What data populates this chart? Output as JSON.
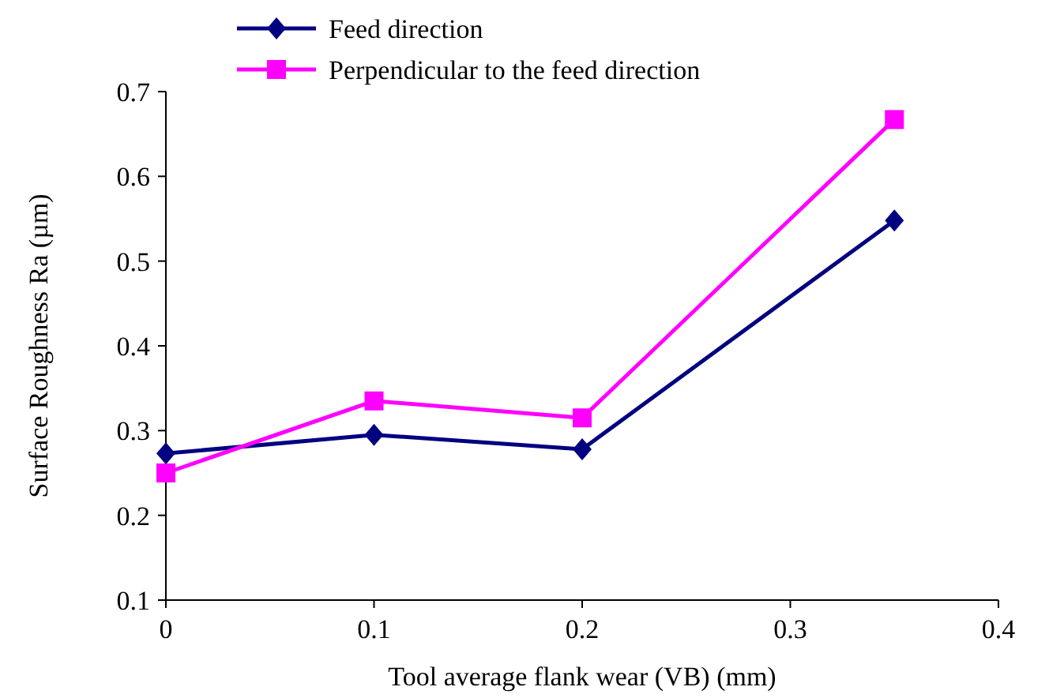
{
  "chart_data": {
    "type": "line",
    "xlabel": "Tool average flank wear (VB)  (mm)",
    "ylabel": "Surface Roughness Ra (µm)",
    "x": [
      0,
      0.1,
      0.2,
      0.35
    ],
    "series": [
      {
        "name": "Feed direction",
        "color": "#000080",
        "values": [
          0.273,
          0.295,
          0.278,
          0.548
        ],
        "marker": "diamond"
      },
      {
        "name": "Perpendicular to the feed direction",
        "color": "#ff00ff",
        "values": [
          0.25,
          0.335,
          0.315,
          0.667
        ],
        "marker": "square"
      }
    ],
    "xlim": [
      0,
      0.4
    ],
    "xticks": [
      0,
      0.1,
      0.2,
      0.3,
      0.4
    ],
    "ylim": [
      0.1,
      0.7
    ],
    "yticks": [
      0.1,
      0.2,
      0.3,
      0.4,
      0.5,
      0.6,
      0.7
    ],
    "legend": "top left",
    "grid": false,
    "line_style": "solid"
  }
}
